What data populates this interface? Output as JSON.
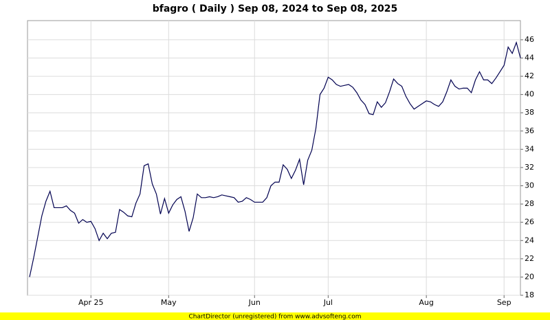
{
  "chart_data": {
    "type": "line",
    "title": "bfagro ( Daily ) Sep 08, 2024 to Sep 08, 2025",
    "footer": "ChartDirector (unregistered) from www.advsofteng.com",
    "categories": [
      null,
      null,
      null,
      null,
      null,
      null,
      null,
      null,
      null,
      null,
      null,
      null,
      null,
      null,
      null,
      "Apr 25",
      null,
      null,
      null,
      null,
      null,
      null,
      null,
      null,
      null,
      null,
      null,
      null,
      null,
      null,
      null,
      null,
      null,
      null,
      "May",
      null,
      null,
      null,
      null,
      null,
      null,
      null,
      null,
      null,
      null,
      null,
      null,
      null,
      null,
      null,
      null,
      null,
      null,
      null,
      null,
      "Jun",
      null,
      null,
      null,
      null,
      null,
      null,
      null,
      null,
      null,
      null,
      null,
      null,
      null,
      null,
      null,
      null,
      null,
      "Jul",
      null,
      null,
      null,
      null,
      null,
      null,
      null,
      null,
      null,
      null,
      null,
      null,
      null,
      null,
      null,
      null,
      null,
      null,
      null,
      null,
      null,
      null,
      null,
      "Aug",
      null,
      null,
      null,
      null,
      null,
      null,
      null,
      null,
      null,
      null,
      null,
      null,
      null,
      null,
      null,
      null,
      null,
      null,
      "Sep",
      null,
      null,
      null,
      null
    ],
    "series": [
      {
        "color": "#000050",
        "values": [
          20,
          22.1,
          24.4,
          26.7,
          28.3,
          29.4,
          27.6,
          27.6,
          27.6,
          27.8,
          27.3,
          27,
          25.9,
          26.3,
          26,
          26.1,
          25.3,
          24,
          24.8,
          24.2,
          24.8,
          24.9,
          27.4,
          27.1,
          26.7,
          26.6,
          28.1,
          29.1,
          32.2,
          32.4,
          30.2,
          29.1,
          26.9,
          28.6,
          27,
          27.9,
          28.5,
          28.8,
          27.2,
          25,
          26.5,
          29.1,
          28.7,
          28.7,
          28.8,
          28.7,
          28.8,
          29,
          28.9,
          28.8,
          28.7,
          28.2,
          28.3,
          28.7,
          28.5,
          28.2,
          28.2,
          28.2,
          28.7,
          30,
          30.4,
          30.4,
          32.3,
          31.8,
          30.8,
          31.7,
          32.9,
          30.1,
          32.8,
          33.9,
          36.3,
          40,
          40.7,
          41.9,
          41.6,
          41.1,
          40.9,
          41,
          41.1,
          40.8,
          40.2,
          39.4,
          38.9,
          37.9,
          37.8,
          39.2,
          38.6,
          39.1,
          40.3,
          41.7,
          41.2,
          40.9,
          39.8,
          39,
          38.4,
          38.7,
          39,
          39.3,
          39.2,
          38.9,
          38.7,
          39.2,
          40.3,
          41.6,
          40.9,
          40.6,
          40.7,
          40.7,
          40.2,
          41.6,
          42.5,
          41.6,
          41.6,
          41.2,
          41.8,
          42.5,
          43.2,
          45.2,
          44.5,
          45.7,
          44
        ]
      }
    ],
    "ylim": [
      18,
      48.1
    ],
    "yticks": [
      18,
      20,
      22,
      24,
      26,
      28,
      30,
      32,
      34,
      36,
      38,
      40,
      42,
      44,
      46
    ],
    "grid": true
  }
}
